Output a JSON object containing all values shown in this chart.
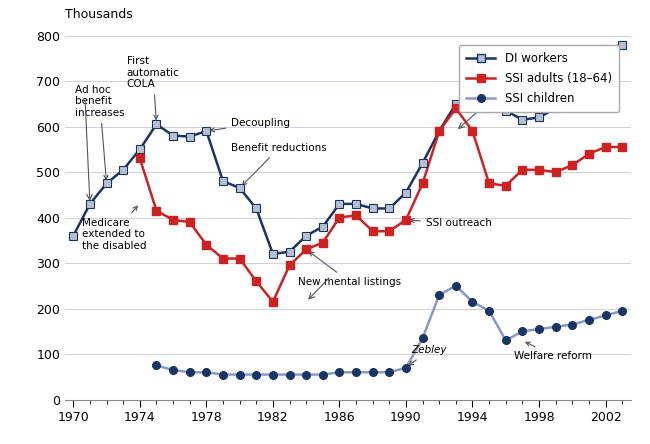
{
  "ylabel_top": "Thousands",
  "years": [
    1970,
    1971,
    1972,
    1973,
    1974,
    1975,
    1976,
    1977,
    1978,
    1979,
    1980,
    1981,
    1982,
    1983,
    1984,
    1985,
    1986,
    1987,
    1988,
    1989,
    1990,
    1991,
    1992,
    1993,
    1994,
    1995,
    1996,
    1997,
    1998,
    1999,
    2000,
    2001,
    2002,
    2003
  ],
  "di_workers": [
    360,
    430,
    475,
    505,
    550,
    605,
    580,
    578,
    590,
    480,
    465,
    420,
    320,
    325,
    360,
    380,
    430,
    430,
    420,
    420,
    455,
    520,
    590,
    650,
    655,
    640,
    635,
    615,
    620,
    640,
    675,
    745,
    770,
    780
  ],
  "ssi_adults": [
    null,
    null,
    null,
    null,
    530,
    415,
    395,
    390,
    340,
    310,
    310,
    260,
    215,
    295,
    330,
    345,
    400,
    405,
    370,
    370,
    395,
    475,
    590,
    640,
    590,
    475,
    470,
    505,
    505,
    500,
    515,
    540,
    555,
    555
  ],
  "ssi_children": [
    null,
    null,
    null,
    null,
    null,
    75,
    65,
    60,
    60,
    55,
    55,
    55,
    55,
    55,
    55,
    55,
    60,
    60,
    60,
    60,
    70,
    135,
    230,
    250,
    215,
    195,
    130,
    150,
    155,
    160,
    165,
    175,
    185,
    195
  ],
  "di_line_color": "#1a3464",
  "di_marker_facecolor": "#b8bfd0",
  "di_marker_edgecolor": "#1a3464",
  "ssi_adult_color": "#cc2222",
  "ssi_children_line_color": "#8898c8",
  "ssi_children_marker_color": "#1a3464",
  "ylim": [
    0,
    800
  ],
  "yticks": [
    0,
    100,
    200,
    300,
    400,
    500,
    600,
    700,
    800
  ],
  "xlim_min": 1969.5,
  "xlim_max": 2003.5,
  "xticks": [
    1970,
    1974,
    1978,
    1982,
    1986,
    1990,
    1994,
    1998,
    2002
  ],
  "grid_color": "#d0d0d8",
  "background_color": "#ffffff"
}
